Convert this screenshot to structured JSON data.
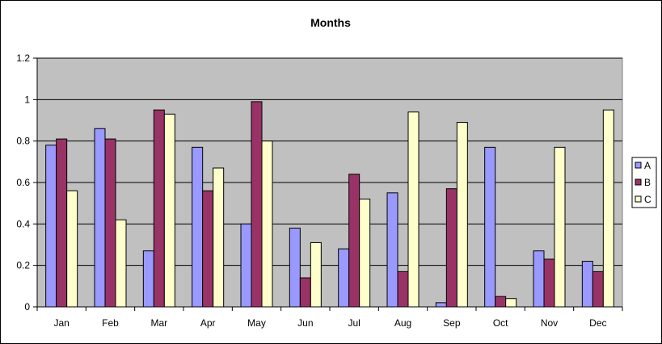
{
  "chart_data": {
    "type": "bar",
    "title": "Months",
    "xlabel": "",
    "ylabel": "",
    "ylim": [
      0,
      1.2
    ],
    "yticks": [
      "0",
      "0.2",
      "0.4",
      "0.6",
      "0.8",
      "1",
      "1.2"
    ],
    "categories": [
      "Jan",
      "Feb",
      "Mar",
      "Apr",
      "May",
      "Jun",
      "Jul",
      "Aug",
      "Sep",
      "Oct",
      "Nov",
      "Dec"
    ],
    "series": [
      {
        "name": "A",
        "color": "#9999ff",
        "values": [
          0.78,
          0.86,
          0.27,
          0.77,
          0.4,
          0.38,
          0.28,
          0.55,
          0.02,
          0.77,
          0.27,
          0.22
        ]
      },
      {
        "name": "B",
        "color": "#993366",
        "values": [
          0.81,
          0.81,
          0.95,
          0.56,
          0.99,
          0.14,
          0.64,
          0.17,
          0.57,
          0.05,
          0.23,
          0.17
        ]
      },
      {
        "name": "C",
        "color": "#ffffcc",
        "values": [
          0.56,
          0.42,
          0.93,
          0.67,
          0.8,
          0.31,
          0.52,
          0.94,
          0.89,
          0.04,
          0.77,
          0.95
        ]
      }
    ],
    "grid": true,
    "plot_background": "#c0c0c0",
    "legend_position": "right"
  }
}
